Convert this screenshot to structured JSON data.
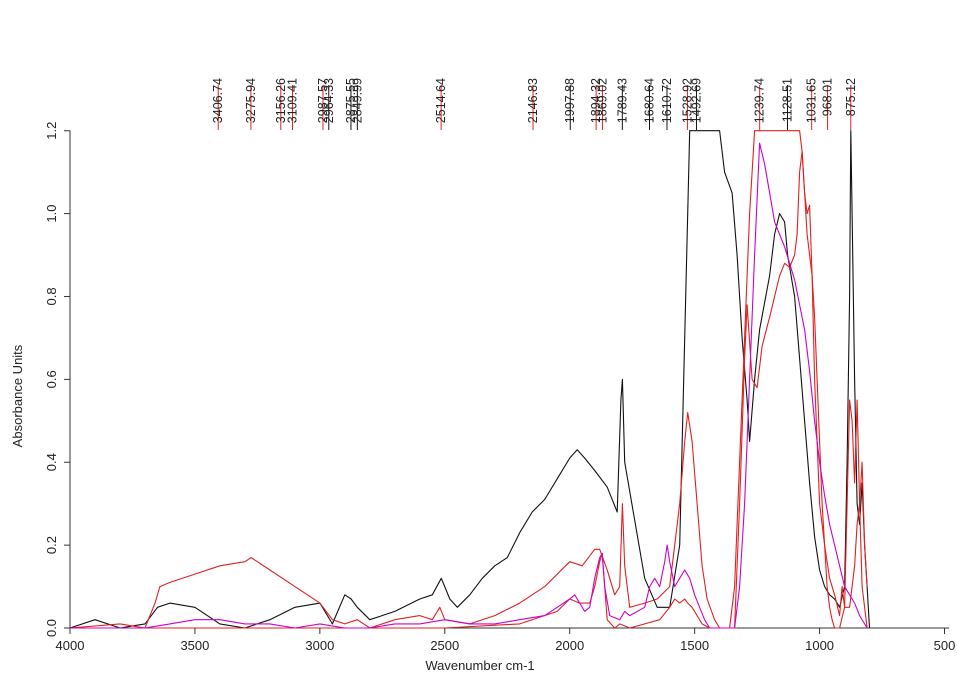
{
  "chart_data": {
    "type": "line",
    "title": "",
    "xlabel": "Wavenumber cm-1",
    "ylabel": "Absorbance Units",
    "xlim": [
      4000,
      450
    ],
    "x_reversed": true,
    "ylim": [
      0,
      1.25
    ],
    "x_ticks": [
      4000,
      3500,
      3000,
      2500,
      2000,
      1500,
      1000,
      500
    ],
    "y_ticks": [
      0.0,
      0.2,
      0.4,
      0.6,
      0.8,
      1.0,
      1.2
    ],
    "y_tick_labels": [
      "0.0",
      "0.2",
      "0.4",
      "0.6",
      "0.8",
      "1.0",
      "1.2"
    ],
    "grid": false,
    "legend": "none",
    "peak_annotations": [
      {
        "label": "3406.74",
        "color": "#e02020"
      },
      {
        "label": "3275.94",
        "color": "#e02020"
      },
      {
        "label": "3156.26",
        "color": "#e02020"
      },
      {
        "label": "3109.41",
        "color": "#e02020"
      },
      {
        "label": "2987.57",
        "color": "#e02020"
      },
      {
        "label": "2964.33",
        "color": "#111111"
      },
      {
        "label": "2875.55",
        "color": "#111111"
      },
      {
        "label": "2849.99",
        "color": "#111111"
      },
      {
        "label": "2514.64",
        "color": "#e02020"
      },
      {
        "label": "2146.83",
        "color": "#e02020"
      },
      {
        "label": "1997.88",
        "color": "#111111"
      },
      {
        "label": "1894.32",
        "color": "#e02020"
      },
      {
        "label": "1869.02",
        "color": "#e02020"
      },
      {
        "label": "1789.43",
        "color": "#111111"
      },
      {
        "label": "1680.64",
        "color": "#111111"
      },
      {
        "label": "1610.72",
        "color": "#111111"
      },
      {
        "label": "1528.92",
        "color": "#e02020"
      },
      {
        "label": "1492.69",
        "color": "#111111"
      },
      {
        "label": "1239.74",
        "color": "#e02020"
      },
      {
        "label": "1128.51",
        "color": "#111111"
      },
      {
        "label": "1031.65",
        "color": "#e02020"
      },
      {
        "label": "968.01",
        "color": "#e02020"
      },
      {
        "label": "875.12",
        "color": "#e02020"
      }
    ],
    "series": [
      {
        "color": "#111111",
        "x": [
          4000,
          3900,
          3800,
          3700,
          3650,
          3600,
          3500,
          3400,
          3300,
          3200,
          3100,
          3000,
          2950,
          2900,
          2875,
          2850,
          2800,
          2700,
          2600,
          2550,
          2514,
          2480,
          2450,
          2400,
          2350,
          2300,
          2250,
          2200,
          2150,
          2100,
          2050,
          2000,
          1970,
          1940,
          1900,
          1850,
          1810,
          1795,
          1789,
          1780,
          1700,
          1650,
          1600,
          1560,
          1540,
          1520,
          1500,
          1450,
          1400,
          1380,
          1350,
          1330,
          1310,
          1290,
          1280,
          1260,
          1240,
          1200,
          1180,
          1160,
          1140,
          1128,
          1100,
          1080,
          1060,
          1040,
          1020,
          1000,
          980,
          960,
          940,
          920,
          900,
          890,
          880,
          875,
          870,
          860,
          850,
          840,
          830,
          820,
          810,
          800
        ],
        "y": [
          0.0,
          0.02,
          0.0,
          0.01,
          0.05,
          0.06,
          0.05,
          0.01,
          0.0,
          0.02,
          0.05,
          0.06,
          0.01,
          0.08,
          0.07,
          0.05,
          0.02,
          0.04,
          0.07,
          0.08,
          0.12,
          0.07,
          0.05,
          0.08,
          0.12,
          0.15,
          0.17,
          0.23,
          0.28,
          0.31,
          0.36,
          0.41,
          0.43,
          0.41,
          0.38,
          0.34,
          0.28,
          0.55,
          0.6,
          0.4,
          0.12,
          0.05,
          0.05,
          0.2,
          0.7,
          1.2,
          1.2,
          1.2,
          1.2,
          1.1,
          1.05,
          0.9,
          0.7,
          0.55,
          0.45,
          0.6,
          0.72,
          0.85,
          0.95,
          1.0,
          0.98,
          0.9,
          0.8,
          0.65,
          0.5,
          0.35,
          0.22,
          0.14,
          0.1,
          0.08,
          0.07,
          0.05,
          0.1,
          0.4,
          0.8,
          1.2,
          1.0,
          0.6,
          0.3,
          0.25,
          0.35,
          0.2,
          0.1,
          0.0
        ]
      },
      {
        "color": "#e02020",
        "x": [
          4000,
          3800,
          3700,
          3660,
          3640,
          3600,
          3500,
          3400,
          3300,
          3275,
          3200,
          3100,
          3000,
          2950,
          2900,
          2850,
          2800,
          2700,
          2600,
          2550,
          2520,
          2500,
          2400,
          2300,
          2200,
          2100,
          2000,
          1950,
          1900,
          1880,
          1850,
          1820,
          1800,
          1789,
          1780,
          1760,
          1700,
          1650,
          1600,
          1560,
          1540,
          1528,
          1510,
          1490,
          1470,
          1450,
          1420,
          1400,
          1380,
          1350,
          1330
        ],
        "y": [
          0.0,
          0.01,
          0.0,
          0.06,
          0.1,
          0.11,
          0.13,
          0.15,
          0.16,
          0.17,
          0.14,
          0.1,
          0.06,
          0.02,
          0.01,
          0.02,
          0.0,
          0.02,
          0.03,
          0.02,
          0.05,
          0.02,
          0.01,
          0.03,
          0.06,
          0.1,
          0.16,
          0.15,
          0.19,
          0.19,
          0.14,
          0.08,
          0.1,
          0.3,
          0.15,
          0.05,
          0.06,
          0.07,
          0.1,
          0.3,
          0.45,
          0.52,
          0.45,
          0.3,
          0.15,
          0.07,
          0.02,
          0.0,
          0.0,
          0.0,
          0.0
        ]
      },
      {
        "color": "#e02020",
        "x": [
          4000,
          3700,
          3400,
          3100,
          3000,
          2500,
          2200,
          2050,
          2000,
          1960,
          1920,
          1900,
          1880,
          1870,
          1860,
          1850,
          1820,
          1800,
          1760,
          1700,
          1640,
          1600,
          1580,
          1560,
          1540,
          1528,
          1510,
          1490,
          1470,
          1440,
          1400,
          1360,
          1340,
          1320,
          1300,
          1280,
          1260,
          1250,
          1200,
          1150,
          1100,
          1080,
          1070,
          1060,
          1050,
          1040,
          1030,
          1020,
          1010,
          1000,
          990,
          980,
          970,
          960,
          950,
          940,
          920,
          900,
          890,
          880,
          870,
          860,
          850,
          840,
          830,
          820,
          810
        ],
        "y": [
          0.0,
          0.0,
          0.0,
          0.0,
          0.0,
          0.0,
          0.01,
          0.04,
          0.07,
          0.06,
          0.06,
          0.1,
          0.16,
          0.18,
          0.1,
          0.02,
          0.0,
          0.01,
          0.0,
          0.01,
          0.02,
          0.05,
          0.07,
          0.06,
          0.07,
          0.06,
          0.05,
          0.03,
          0.01,
          0.0,
          0.0,
          0.0,
          0.1,
          0.4,
          0.7,
          1.0,
          1.2,
          1.2,
          1.2,
          1.2,
          1.2,
          1.2,
          1.15,
          1.05,
          0.95,
          0.9,
          0.85,
          0.75,
          0.6,
          0.45,
          0.3,
          0.2,
          0.1,
          0.05,
          0.02,
          0.0,
          0.0,
          0.05,
          0.3,
          0.55,
          0.5,
          0.35,
          0.55,
          0.3,
          0.1,
          0.05,
          0.0
        ]
      },
      {
        "color": "#e02020",
        "x": [
          1340,
          1320,
          1300,
          1290,
          1270,
          1250,
          1230,
          1200,
          1180,
          1160,
          1140,
          1120,
          1100,
          1090,
          1080,
          1070,
          1060,
          1050,
          1040,
          1030,
          1020,
          1000,
          980,
          960,
          940,
          920,
          910,
          900,
          880,
          860,
          850,
          840,
          830,
          820,
          810
        ],
        "y": [
          0.0,
          0.3,
          0.65,
          0.78,
          0.6,
          0.58,
          0.68,
          0.75,
          0.8,
          0.85,
          0.88,
          0.87,
          0.9,
          0.95,
          1.1,
          1.15,
          1.05,
          1.0,
          1.02,
          0.85,
          0.6,
          0.3,
          0.2,
          0.12,
          0.08,
          0.03,
          0.1,
          0.05,
          0.05,
          0.15,
          0.25,
          0.3,
          0.4,
          0.2,
          0.1
        ]
      },
      {
        "color": "#cc00cc",
        "x": [
          4000,
          3700,
          3600,
          3500,
          3400,
          3300,
          3200,
          3100,
          3000,
          2900,
          2800,
          2700,
          2600,
          2500,
          2400,
          2300,
          2200,
          2100,
          2050,
          2000,
          1980,
          1960,
          1940,
          1920,
          1900,
          1880,
          1870,
          1860,
          1840,
          1800,
          1780,
          1760,
          1700,
          1680,
          1660,
          1640,
          1620,
          1610,
          1600,
          1580,
          1560,
          1540,
          1520,
          1500,
          1480,
          1460,
          1440,
          1400,
          1360,
          1340,
          1320,
          1300,
          1280,
          1260,
          1240,
          1220,
          1200,
          1180,
          1160,
          1140,
          1120,
          1100,
          1080,
          1060,
          1040,
          1020,
          1000,
          980,
          960,
          940,
          920,
          900,
          880,
          860,
          840,
          820,
          810
        ],
        "y": [
          0.0,
          0.0,
          0.01,
          0.02,
          0.02,
          0.01,
          0.01,
          0.0,
          0.01,
          0.0,
          0.0,
          0.01,
          0.01,
          0.02,
          0.01,
          0.01,
          0.02,
          0.03,
          0.05,
          0.07,
          0.08,
          0.06,
          0.04,
          0.05,
          0.12,
          0.17,
          0.18,
          0.1,
          0.03,
          0.02,
          0.04,
          0.03,
          0.05,
          0.1,
          0.12,
          0.1,
          0.16,
          0.2,
          0.16,
          0.1,
          0.12,
          0.14,
          0.12,
          0.08,
          0.05,
          0.02,
          0.0,
          0.0,
          0.0,
          0.0,
          0.1,
          0.3,
          0.6,
          0.9,
          1.17,
          1.12,
          1.05,
          0.98,
          0.95,
          0.92,
          0.88,
          0.84,
          0.78,
          0.72,
          0.62,
          0.5,
          0.4,
          0.32,
          0.25,
          0.2,
          0.15,
          0.1,
          0.08,
          0.06,
          0.03,
          0.01,
          0.0
        ]
      }
    ]
  }
}
